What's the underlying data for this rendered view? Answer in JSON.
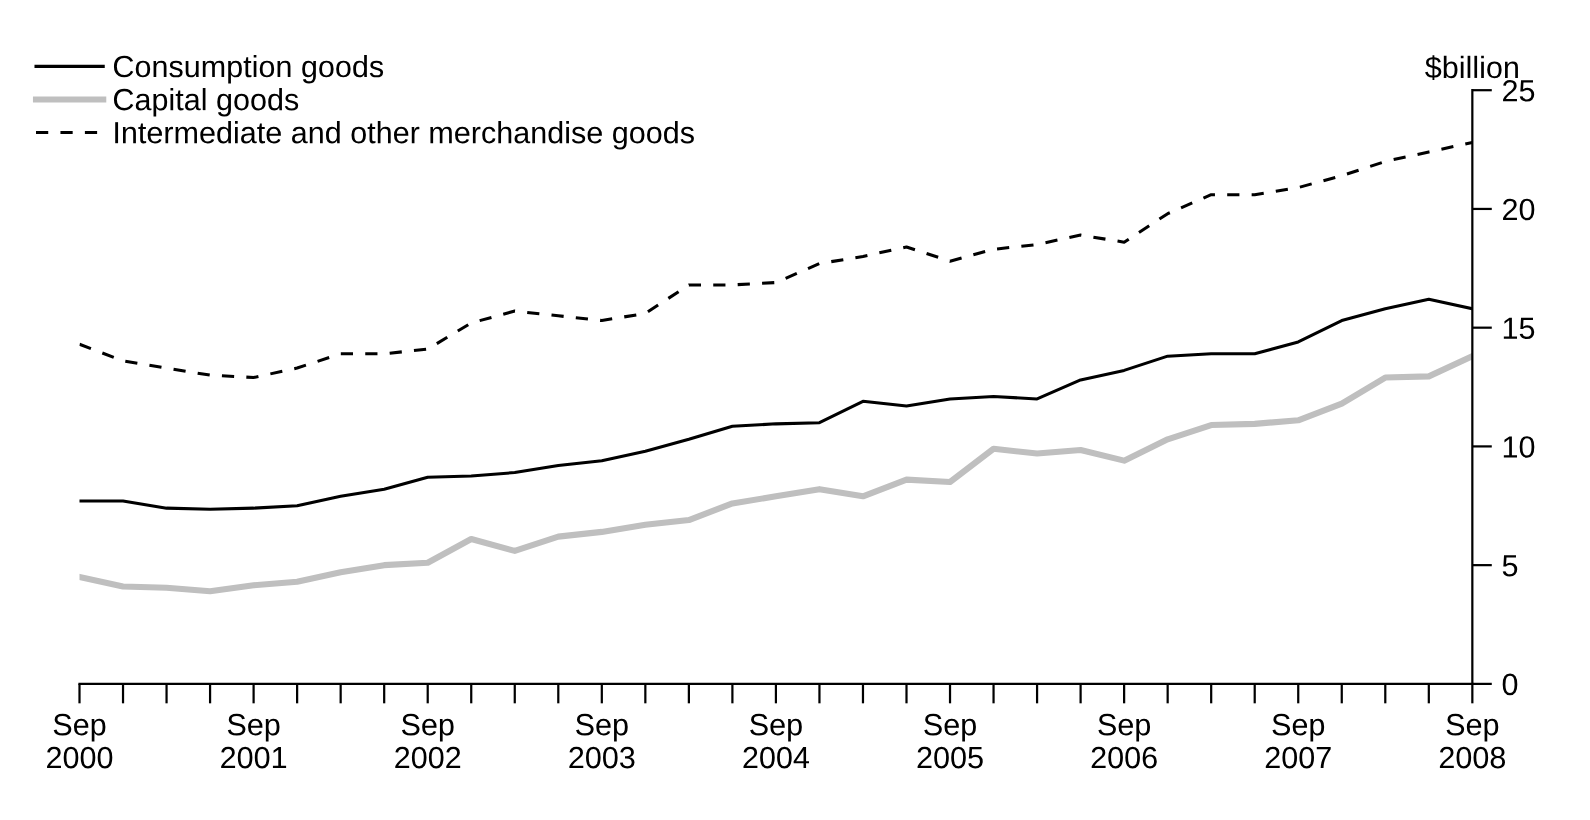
{
  "chart_data": {
    "type": "line",
    "ylabel": "$billion",
    "x": [
      "2000-09",
      "2000-12",
      "2001-03",
      "2001-06",
      "2001-09",
      "2001-12",
      "2002-03",
      "2002-06",
      "2002-09",
      "2002-12",
      "2003-03",
      "2003-06",
      "2003-09",
      "2003-12",
      "2004-03",
      "2004-06",
      "2004-09",
      "2004-12",
      "2005-03",
      "2005-06",
      "2005-09",
      "2005-12",
      "2006-03",
      "2006-06",
      "2006-09",
      "2006-12",
      "2007-03",
      "2007-06",
      "2007-09",
      "2007-12",
      "2008-03",
      "2008-06",
      "2008-09"
    ],
    "series": [
      {
        "name": "Consumption goods",
        "color": "#000000",
        "line_style": "solid",
        "values": [
          7.7,
          7.7,
          7.4,
          7.35,
          7.4,
          7.5,
          7.9,
          8.2,
          8.7,
          8.75,
          8.9,
          9.2,
          9.4,
          9.8,
          10.3,
          10.85,
          10.95,
          11.0,
          11.9,
          11.7,
          12.0,
          12.1,
          12.0,
          12.8,
          13.2,
          13.8,
          13.9,
          13.9,
          14.4,
          15.3,
          15.8,
          16.2,
          15.8
        ]
      },
      {
        "name": "Capital goods",
        "color": "#bfbfbf",
        "line_style": "solid",
        "values": [
          4.5,
          4.1,
          4.05,
          3.9,
          4.15,
          4.3,
          4.7,
          5.0,
          5.1,
          6.1,
          5.6,
          6.2,
          6.4,
          6.7,
          6.9,
          7.6,
          7.9,
          8.2,
          7.9,
          8.6,
          8.5,
          9.9,
          9.7,
          9.85,
          9.4,
          10.3,
          10.9,
          10.95,
          11.1,
          11.8,
          12.9,
          12.95,
          13.8
        ]
      },
      {
        "name": "Intermediate and other merchandise goods",
        "color": "#000000",
        "line_style": "dashed",
        "values": [
          14.3,
          13.6,
          13.3,
          13.0,
          12.9,
          13.3,
          13.9,
          13.9,
          14.1,
          15.2,
          15.7,
          15.5,
          15.3,
          15.6,
          16.8,
          16.8,
          16.9,
          17.7,
          18.0,
          18.4,
          17.8,
          18.3,
          18.5,
          18.9,
          18.6,
          19.8,
          20.6,
          20.6,
          20.9,
          21.4,
          22.0,
          22.4,
          22.8
        ]
      }
    ],
    "xlim": [
      "2000-09",
      "2008-09"
    ],
    "xticks": [
      {
        "value": "2000-09",
        "label": "Sep\n2000"
      },
      {
        "value": "2000-12",
        "label": null
      },
      {
        "value": "2001-03",
        "label": null
      },
      {
        "value": "2001-06",
        "label": null
      },
      {
        "value": "2001-09",
        "label": "Sep\n2001"
      },
      {
        "value": "2001-12",
        "label": null
      },
      {
        "value": "2002-03",
        "label": null
      },
      {
        "value": "2002-06",
        "label": null
      },
      {
        "value": "2002-09",
        "label": "Sep\n2002"
      },
      {
        "value": "2002-12",
        "label": null
      },
      {
        "value": "2003-03",
        "label": null
      },
      {
        "value": "2003-06",
        "label": null
      },
      {
        "value": "2003-09",
        "label": "Sep\n2003"
      },
      {
        "value": "2003-12",
        "label": null
      },
      {
        "value": "2004-03",
        "label": null
      },
      {
        "value": "2004-06",
        "label": null
      },
      {
        "value": "2004-09",
        "label": "Sep\n2004"
      },
      {
        "value": "2004-12",
        "label": null
      },
      {
        "value": "2005-03",
        "label": null
      },
      {
        "value": "2005-06",
        "label": null
      },
      {
        "value": "2005-09",
        "label": "Sep\n2005"
      },
      {
        "value": "2005-12",
        "label": null
      },
      {
        "value": "2006-03",
        "label": null
      },
      {
        "value": "2006-06",
        "label": null
      },
      {
        "value": "2006-09",
        "label": "Sep\n2006"
      },
      {
        "value": "2006-12",
        "label": null
      },
      {
        "value": "2007-03",
        "label": null
      },
      {
        "value": "2007-06",
        "label": null
      },
      {
        "value": "2007-09",
        "label": "Sep\n2007"
      },
      {
        "value": "2007-12",
        "label": null
      },
      {
        "value": "2008-03",
        "label": null
      },
      {
        "value": "2008-06",
        "label": null
      },
      {
        "value": "2008-09",
        "label": "Sep\n2008"
      }
    ],
    "ylim": [
      0,
      25
    ],
    "yticks": [
      0,
      5,
      10,
      15,
      20,
      25
    ],
    "grid": false,
    "legend": "top left"
  }
}
